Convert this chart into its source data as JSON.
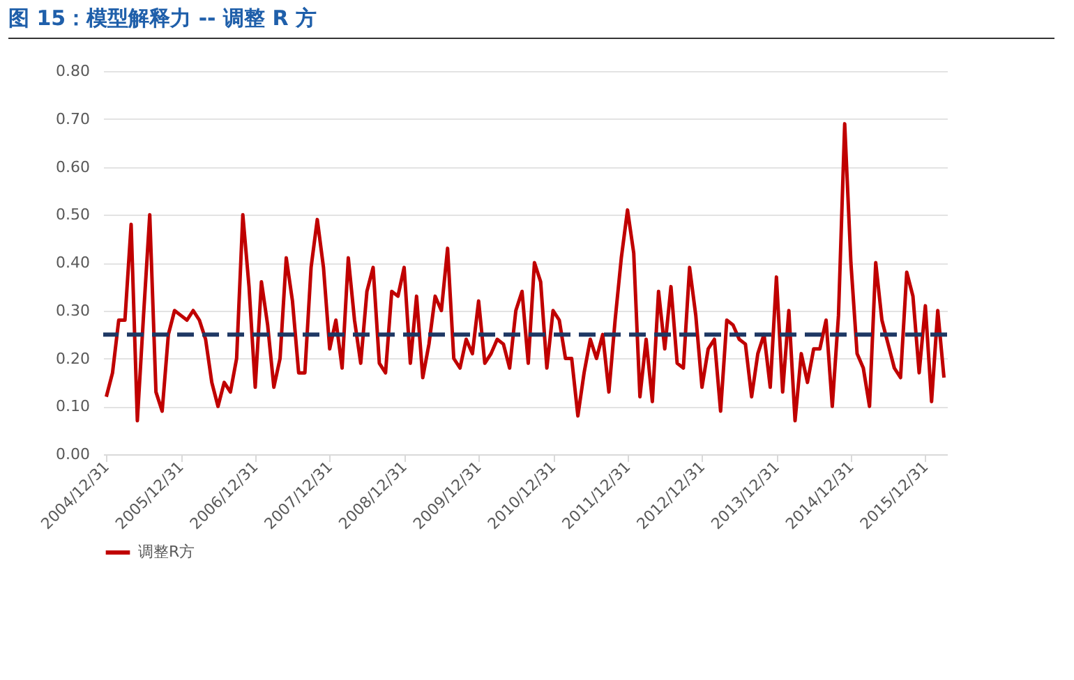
{
  "chart_data": {
    "type": "line",
    "title": "图 15：模型解释力 -- 调整 R 方",
    "categories": [
      "2004/12/31",
      null,
      null,
      null,
      null,
      null,
      null,
      null,
      null,
      null,
      null,
      null,
      "2005/12/31",
      null,
      null,
      null,
      null,
      null,
      null,
      null,
      null,
      null,
      null,
      null,
      "2006/12/31",
      null,
      null,
      null,
      null,
      null,
      null,
      null,
      null,
      null,
      null,
      null,
      "2007/12/31",
      null,
      null,
      null,
      null,
      null,
      null,
      null,
      null,
      null,
      null,
      null,
      "2008/12/31",
      null,
      null,
      null,
      null,
      null,
      null,
      null,
      null,
      null,
      null,
      null,
      "2009/12/31",
      null,
      null,
      null,
      null,
      null,
      null,
      null,
      null,
      null,
      null,
      null,
      "2010/12/31",
      null,
      null,
      null,
      null,
      null,
      null,
      null,
      null,
      null,
      null,
      null,
      "2011/12/31",
      null,
      null,
      null,
      null,
      null,
      null,
      null,
      null,
      null,
      null,
      null,
      "2012/12/31",
      null,
      null,
      null,
      null,
      null,
      null,
      null,
      null,
      null,
      null,
      null,
      "2013/12/31",
      null,
      null,
      null,
      null,
      null,
      null,
      null,
      null,
      null,
      null,
      null,
      "2014/12/31",
      null,
      null,
      null,
      null,
      null,
      null,
      null,
      null,
      null,
      null,
      null,
      "2015/12/31",
      null,
      null,
      null
    ],
    "series": [
      {
        "name": "调整R方",
        "color": "#c00000",
        "line_style": "solid",
        "values": [
          0.12,
          0.17,
          0.28,
          0.28,
          0.48,
          0.07,
          0.29,
          0.5,
          0.13,
          0.09,
          0.25,
          0.3,
          0.29,
          0.28,
          0.3,
          0.28,
          0.24,
          0.15,
          0.1,
          0.15,
          0.13,
          0.2,
          0.5,
          0.35,
          0.14,
          0.36,
          0.27,
          0.14,
          0.2,
          0.41,
          0.32,
          0.17,
          0.17,
          0.39,
          0.49,
          0.39,
          0.22,
          0.28,
          0.18,
          0.41,
          0.28,
          0.19,
          0.34,
          0.39,
          0.19,
          0.17,
          0.34,
          0.33,
          0.39,
          0.19,
          0.33,
          0.16,
          0.23,
          0.33,
          0.3,
          0.43,
          0.2,
          0.18,
          0.24,
          0.21,
          0.32,
          0.19,
          0.21,
          0.24,
          0.23,
          0.18,
          0.3,
          0.34,
          0.19,
          0.4,
          0.36,
          0.18,
          0.3,
          0.28,
          0.2,
          0.2,
          0.08,
          0.17,
          0.24,
          0.2,
          0.25,
          0.13,
          0.28,
          0.41,
          0.51,
          0.42,
          0.12,
          0.24,
          0.11,
          0.34,
          0.22,
          0.35,
          0.19,
          0.18,
          0.39,
          0.29,
          0.14,
          0.22,
          0.24,
          0.09,
          0.28,
          0.27,
          0.24,
          0.23,
          0.12,
          0.21,
          0.25,
          0.14,
          0.37,
          0.13,
          0.3,
          0.07,
          0.21,
          0.15,
          0.22,
          0.22,
          0.28,
          0.1,
          0.29,
          0.69,
          0.4,
          0.21,
          0.18,
          0.1,
          0.4,
          0.28,
          0.23,
          0.18,
          0.16,
          0.38,
          0.33,
          0.17,
          0.31,
          0.11,
          0.3,
          0.16
        ]
      }
    ],
    "ylim": [
      0,
      0.8
    ],
    "yticks": [
      {
        "value": 0,
        "label": "0.00"
      },
      {
        "value": 0.1,
        "label": "0.10"
      },
      {
        "value": 0.2,
        "label": "0.20"
      },
      {
        "value": 0.3,
        "label": "0.30"
      },
      {
        "value": 0.4,
        "label": "0.40"
      },
      {
        "value": 0.5,
        "label": "0.50"
      },
      {
        "value": 0.6,
        "label": "0.60"
      },
      {
        "value": 0.7,
        "label": "0.70"
      },
      {
        "value": 0.8,
        "label": "0.80"
      }
    ],
    "grid": "y",
    "legend": "bottom",
    "marker": "none",
    "ref_lines": [
      {
        "axis": "y",
        "value": 0.25,
        "color": "#1f3864",
        "line_style": "dashed"
      }
    ]
  }
}
